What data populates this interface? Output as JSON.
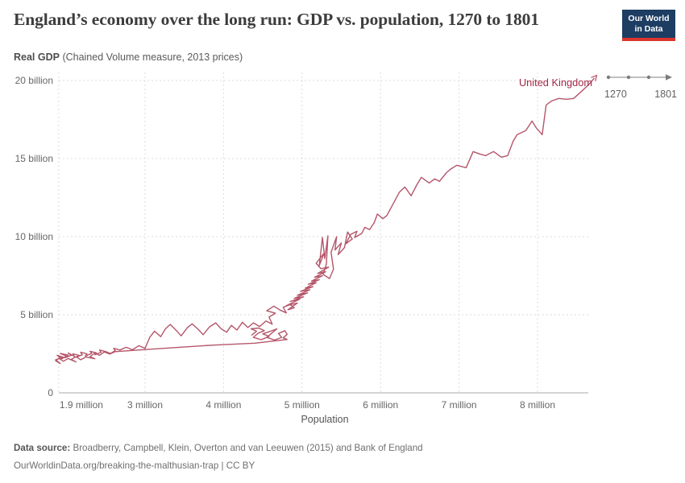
{
  "header": {
    "title": "England’s economy over the long run: GDP vs. population, 1270 to 1801",
    "logo_line1": "Our World",
    "logo_line2": "in Data",
    "subtitle_bold": "Real GDP",
    "subtitle_rest": " (Chained Volume measure, 2013 prices)"
  },
  "timeline": {
    "start_label": "1270",
    "end_label": "1801"
  },
  "footer": {
    "source_bold": "Data source:",
    "source_rest": " Broadberry, Campbell, Klein, Overton and van Leeuwen (2015) and Bank of England",
    "link_line": "OurWorldinData.org/breaking-the-malthusian-trap | CC BY"
  },
  "chart_data": {
    "type": "line",
    "subtype": "connected-scatter",
    "title": "England’s economy over the long run: GDP vs. population, 1270 to 1801",
    "xlabel": "Population",
    "ylabel": "Real GDP (Chained Volume measure, 2013 prices)",
    "x_unit": "million",
    "y_unit": "billion",
    "xlim": [
      1.85,
      8.8
    ],
    "ylim": [
      0,
      20.5
    ],
    "grid": true,
    "legend_position": "end-of-line-label",
    "time_range": [
      1270,
      1801
    ],
    "x_ticks": [
      {
        "value": 1.9,
        "label": "1.9 million"
      },
      {
        "value": 3,
        "label": "3 million"
      },
      {
        "value": 4,
        "label": "4 million"
      },
      {
        "value": 5,
        "label": "5 million"
      },
      {
        "value": 6,
        "label": "6 million"
      },
      {
        "value": 7,
        "label": "7 million"
      },
      {
        "value": 8,
        "label": "8 million"
      }
    ],
    "y_ticks": [
      {
        "value": 0,
        "label": "0"
      },
      {
        "value": 5,
        "label": "5 billion"
      },
      {
        "value": 10,
        "label": "10 billion"
      },
      {
        "value": 15,
        "label": "15 billion"
      },
      {
        "value": 20,
        "label": "20 billion"
      }
    ],
    "series": [
      {
        "name": "United Kingdom",
        "color": "#b5566a",
        "label_color": "#a32847",
        "points": [
          [
            4.36,
            3.7
          ],
          [
            4.42,
            3.95
          ],
          [
            4.35,
            4.1
          ],
          [
            4.45,
            4.15
          ],
          [
            4.52,
            3.98
          ],
          [
            4.44,
            3.82
          ],
          [
            4.38,
            3.55
          ],
          [
            4.48,
            3.4
          ],
          [
            4.58,
            3.62
          ],
          [
            4.5,
            3.78
          ],
          [
            4.6,
            3.95
          ],
          [
            4.68,
            4.1
          ],
          [
            4.62,
            3.85
          ],
          [
            4.55,
            3.55
          ],
          [
            4.65,
            3.38
          ],
          [
            4.74,
            3.55
          ],
          [
            4.7,
            3.8
          ],
          [
            4.78,
            3.98
          ],
          [
            4.81,
            3.75
          ],
          [
            4.76,
            3.52
          ],
          [
            4.81,
            3.42
          ],
          [
            4.4,
            3.18
          ],
          [
            3.85,
            3.05
          ],
          [
            3.2,
            2.84
          ],
          [
            2.62,
            2.64
          ],
          [
            2.55,
            2.48
          ],
          [
            2.48,
            2.62
          ],
          [
            2.42,
            2.4
          ],
          [
            2.36,
            2.55
          ],
          [
            2.3,
            2.32
          ],
          [
            2.36,
            2.18
          ],
          [
            2.25,
            2.3
          ],
          [
            2.18,
            2.12
          ],
          [
            2.12,
            2.32
          ],
          [
            2.06,
            2.14
          ],
          [
            2.12,
            1.98
          ],
          [
            2.02,
            2.2
          ],
          [
            1.96,
            2.02
          ],
          [
            1.9,
            2.22
          ],
          [
            1.86,
            2.05
          ],
          [
            1.92,
            1.88
          ],
          [
            1.86,
            2.12
          ],
          [
            1.96,
            2.28
          ],
          [
            1.88,
            2.4
          ],
          [
            1.94,
            2.18
          ],
          [
            2.0,
            2.35
          ],
          [
            1.92,
            2.52
          ],
          [
            2.02,
            2.42
          ],
          [
            1.98,
            2.25
          ],
          [
            2.06,
            2.4
          ],
          [
            2.02,
            2.55
          ],
          [
            2.1,
            2.34
          ],
          [
            2.08,
            2.5
          ],
          [
            2.16,
            2.4
          ],
          [
            2.12,
            2.28
          ],
          [
            2.2,
            2.44
          ],
          [
            2.18,
            2.6
          ],
          [
            2.26,
            2.5
          ],
          [
            2.24,
            2.36
          ],
          [
            2.32,
            2.52
          ],
          [
            2.3,
            2.66
          ],
          [
            2.38,
            2.56
          ],
          [
            2.36,
            2.44
          ],
          [
            2.44,
            2.6
          ],
          [
            2.42,
            2.74
          ],
          [
            2.5,
            2.64
          ],
          [
            2.56,
            2.52
          ],
          [
            2.62,
            2.7
          ],
          [
            2.6,
            2.85
          ],
          [
            2.68,
            2.74
          ],
          [
            2.76,
            2.92
          ],
          [
            2.84,
            2.76
          ],
          [
            2.92,
            3.02
          ],
          [
            3.0,
            2.85
          ],
          [
            3.06,
            3.55
          ],
          [
            3.12,
            3.95
          ],
          [
            3.2,
            3.6
          ],
          [
            3.26,
            4.1
          ],
          [
            3.32,
            4.38
          ],
          [
            3.4,
            3.98
          ],
          [
            3.46,
            3.65
          ],
          [
            3.54,
            4.18
          ],
          [
            3.6,
            4.42
          ],
          [
            3.68,
            4.05
          ],
          [
            3.74,
            3.72
          ],
          [
            3.82,
            4.22
          ],
          [
            3.9,
            4.48
          ],
          [
            3.97,
            4.1
          ],
          [
            4.04,
            3.88
          ],
          [
            4.1,
            4.32
          ],
          [
            4.17,
            4.02
          ],
          [
            4.24,
            4.52
          ],
          [
            4.31,
            4.18
          ],
          [
            4.38,
            4.48
          ],
          [
            4.46,
            4.25
          ],
          [
            4.54,
            4.6
          ],
          [
            4.62,
            4.4
          ],
          [
            4.58,
            4.85
          ],
          [
            4.66,
            5.1
          ],
          [
            4.55,
            5.25
          ],
          [
            4.64,
            5.55
          ],
          [
            4.72,
            5.3
          ],
          [
            4.8,
            5.12
          ],
          [
            4.76,
            5.48
          ],
          [
            4.85,
            5.65
          ],
          [
            4.9,
            5.45
          ],
          [
            4.82,
            5.32
          ],
          [
            4.94,
            5.75
          ],
          [
            4.8,
            5.58
          ],
          [
            4.97,
            6.0
          ],
          [
            4.85,
            5.85
          ],
          [
            5.02,
            6.15
          ],
          [
            4.9,
            6.05
          ],
          [
            5.07,
            6.4
          ],
          [
            4.94,
            6.25
          ],
          [
            5.1,
            6.6
          ],
          [
            4.98,
            6.5
          ],
          [
            5.14,
            6.8
          ],
          [
            5.04,
            6.7
          ],
          [
            5.18,
            7.05
          ],
          [
            5.08,
            6.95
          ],
          [
            5.22,
            7.25
          ],
          [
            5.12,
            7.15
          ],
          [
            5.26,
            7.5
          ],
          [
            5.16,
            7.4
          ],
          [
            5.3,
            7.75
          ],
          [
            5.2,
            7.65
          ],
          [
            5.34,
            8.05
          ],
          [
            5.24,
            7.95
          ],
          [
            5.18,
            8.3
          ],
          [
            5.28,
            8.95
          ],
          [
            5.22,
            8.15
          ],
          [
            5.26,
            9.95
          ],
          [
            5.29,
            8.6
          ],
          [
            5.33,
            10.05
          ],
          [
            5.31,
            8.25
          ],
          [
            5.27,
            7.58
          ],
          [
            5.35,
            7.32
          ],
          [
            5.4,
            7.92
          ],
          [
            5.37,
            9.0
          ],
          [
            5.44,
            10.0
          ],
          [
            5.42,
            9.15
          ],
          [
            5.5,
            9.6
          ],
          [
            5.46,
            8.85
          ],
          [
            5.54,
            9.3
          ],
          [
            5.58,
            10.3
          ],
          [
            5.64,
            9.85
          ],
          [
            5.56,
            9.55
          ],
          [
            5.62,
            10.15
          ],
          [
            5.7,
            10.35
          ],
          [
            5.67,
            9.95
          ],
          [
            5.76,
            10.2
          ],
          [
            5.8,
            10.6
          ],
          [
            5.86,
            10.45
          ],
          [
            5.92,
            10.9
          ],
          [
            5.96,
            11.45
          ],
          [
            6.03,
            11.15
          ],
          [
            6.08,
            11.35
          ],
          [
            6.16,
            12.1
          ],
          [
            6.24,
            12.85
          ],
          [
            6.31,
            13.18
          ],
          [
            6.39,
            12.62
          ],
          [
            6.46,
            13.3
          ],
          [
            6.52,
            13.8
          ],
          [
            6.62,
            13.44
          ],
          [
            6.69,
            13.7
          ],
          [
            6.75,
            13.54
          ],
          [
            6.84,
            14.1
          ],
          [
            6.9,
            14.35
          ],
          [
            6.97,
            14.57
          ],
          [
            7.09,
            14.42
          ],
          [
            7.18,
            15.45
          ],
          [
            7.26,
            15.3
          ],
          [
            7.34,
            15.19
          ],
          [
            7.44,
            15.45
          ],
          [
            7.54,
            15.09
          ],
          [
            7.62,
            15.19
          ],
          [
            7.69,
            16.12
          ],
          [
            7.74,
            16.53
          ],
          [
            7.85,
            16.79
          ],
          [
            7.93,
            17.4
          ],
          [
            7.98,
            16.99
          ],
          [
            8.06,
            16.53
          ],
          [
            8.11,
            18.43
          ],
          [
            8.18,
            18.69
          ],
          [
            8.27,
            18.85
          ],
          [
            8.37,
            18.8
          ],
          [
            8.46,
            18.85
          ],
          [
            8.54,
            19.21
          ],
          [
            8.65,
            19.72
          ],
          [
            8.72,
            20.13
          ]
        ]
      }
    ]
  }
}
